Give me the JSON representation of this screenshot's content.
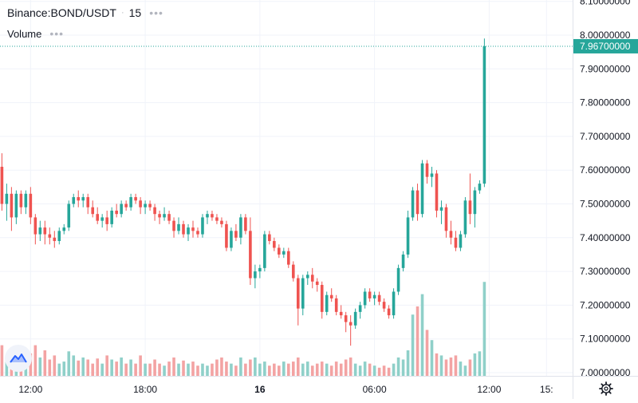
{
  "header": {
    "symbol": "Binance:BOND/USDT",
    "separator": "·",
    "interval": "15",
    "more": "•••"
  },
  "volume_legend": {
    "label": "Volume",
    "more": "•••"
  },
  "last_price_label": "7.96700000",
  "colors": {
    "up": "#26a69a",
    "down": "#ef5350",
    "up_volume": "#8fd0c9",
    "down_volume": "#f3a3a3",
    "grid": "#f0f3fa",
    "price_line": "#26a69a"
  },
  "icons": {
    "logo": "tradingview-logo-icon",
    "settings": "gear-icon"
  },
  "chart_data": {
    "type": "candlestick",
    "symbol": "BOND/USDT",
    "interval_minutes": 15,
    "y_axis": {
      "ticks": [
        7.0,
        7.1,
        7.2,
        7.3,
        7.4,
        7.5,
        7.6,
        7.7,
        7.8,
        7.9,
        8.0,
        8.1
      ],
      "tick_labels": [
        "7.00000000",
        "7.10000000",
        "7.20000000",
        "7.30000000",
        "7.40000000",
        "7.50000000",
        "7.60000000",
        "7.70000000",
        "7.80000000",
        "7.90000000",
        "8.00000000",
        "8.10000000"
      ],
      "range": [
        6.985,
        8.12
      ]
    },
    "x_axis": {
      "tick_labels": [
        {
          "label": "12:00",
          "bar": 6,
          "bold": false
        },
        {
          "label": "18:00",
          "bar": 30,
          "bold": false
        },
        {
          "label": "16",
          "bar": 54,
          "bold": true
        },
        {
          "label": "06:00",
          "bar": 78,
          "bold": false
        },
        {
          "label": "12:00",
          "bar": 102,
          "bold": false
        },
        {
          "label": "15:",
          "bar": 114,
          "bold": false
        }
      ]
    },
    "last_price": 7.967,
    "grid": true,
    "candles": [
      [
        7.61,
        7.65,
        7.48,
        7.5,
        30
      ],
      [
        7.5,
        7.56,
        7.45,
        7.53,
        18
      ],
      [
        7.53,
        7.55,
        7.42,
        7.46,
        15
      ],
      [
        7.46,
        7.54,
        7.44,
        7.53,
        26
      ],
      [
        7.53,
        7.54,
        7.47,
        7.49,
        14
      ],
      [
        7.49,
        7.54,
        7.47,
        7.53,
        20
      ],
      [
        7.53,
        7.55,
        7.44,
        7.46,
        22
      ],
      [
        7.46,
        7.47,
        7.38,
        7.41,
        30
      ],
      [
        7.41,
        7.45,
        7.39,
        7.43,
        18
      ],
      [
        7.43,
        7.45,
        7.38,
        7.41,
        25
      ],
      [
        7.41,
        7.43,
        7.38,
        7.4,
        16
      ],
      [
        7.4,
        7.42,
        7.37,
        7.39,
        20
      ],
      [
        7.39,
        7.43,
        7.38,
        7.42,
        12
      ],
      [
        7.42,
        7.44,
        7.41,
        7.43,
        14
      ],
      [
        7.43,
        7.51,
        7.42,
        7.5,
        24
      ],
      [
        7.5,
        7.53,
        7.49,
        7.52,
        20
      ],
      [
        7.52,
        7.54,
        7.49,
        7.51,
        15
      ],
      [
        7.51,
        7.53,
        7.49,
        7.52,
        18
      ],
      [
        7.52,
        7.53,
        7.47,
        7.49,
        16
      ],
      [
        7.49,
        7.51,
        7.46,
        7.47,
        12
      ],
      [
        7.47,
        7.49,
        7.44,
        7.45,
        17
      ],
      [
        7.45,
        7.47,
        7.43,
        7.46,
        12
      ],
      [
        7.46,
        7.48,
        7.42,
        7.44,
        20
      ],
      [
        7.44,
        7.49,
        7.43,
        7.48,
        16
      ],
      [
        7.48,
        7.5,
        7.46,
        7.47,
        14
      ],
      [
        7.47,
        7.51,
        7.46,
        7.5,
        18
      ],
      [
        7.5,
        7.51,
        7.48,
        7.49,
        12
      ],
      [
        7.49,
        7.53,
        7.48,
        7.52,
        16
      ],
      [
        7.52,
        7.53,
        7.5,
        7.51,
        12
      ],
      [
        7.51,
        7.52,
        7.47,
        7.49,
        20
      ],
      [
        7.49,
        7.51,
        7.47,
        7.5,
        12
      ],
      [
        7.5,
        7.51,
        7.48,
        7.49,
        12
      ],
      [
        7.49,
        7.5,
        7.45,
        7.47,
        16
      ],
      [
        7.47,
        7.48,
        7.44,
        7.46,
        12
      ],
      [
        7.46,
        7.49,
        7.45,
        7.47,
        10
      ],
      [
        7.47,
        7.48,
        7.44,
        7.45,
        14
      ],
      [
        7.45,
        7.46,
        7.4,
        7.42,
        18
      ],
      [
        7.42,
        7.46,
        7.41,
        7.44,
        12
      ],
      [
        7.44,
        7.45,
        7.4,
        7.41,
        15
      ],
      [
        7.41,
        7.44,
        7.39,
        7.43,
        12
      ],
      [
        7.43,
        7.45,
        7.4,
        7.42,
        14
      ],
      [
        7.42,
        7.43,
        7.4,
        7.41,
        10
      ],
      [
        7.41,
        7.47,
        7.4,
        7.46,
        12
      ],
      [
        7.46,
        7.48,
        7.44,
        7.47,
        10
      ],
      [
        7.47,
        7.48,
        7.45,
        7.46,
        12
      ],
      [
        7.46,
        7.47,
        7.44,
        7.45,
        16
      ],
      [
        7.45,
        7.46,
        7.43,
        7.44,
        18
      ],
      [
        7.44,
        7.45,
        7.36,
        7.37,
        14
      ],
      [
        7.37,
        7.43,
        7.36,
        7.42,
        12
      ],
      [
        7.42,
        7.44,
        7.39,
        7.4,
        10
      ],
      [
        7.4,
        7.47,
        7.38,
        7.46,
        18
      ],
      [
        7.46,
        7.47,
        7.41,
        7.42,
        12
      ],
      [
        7.42,
        7.46,
        7.26,
        7.28,
        16
      ],
      [
        7.28,
        7.32,
        7.25,
        7.3,
        18
      ],
      [
        7.3,
        7.32,
        7.28,
        7.31,
        12
      ],
      [
        7.31,
        7.42,
        7.3,
        7.41,
        14
      ],
      [
        7.41,
        7.42,
        7.38,
        7.39,
        10
      ],
      [
        7.39,
        7.4,
        7.36,
        7.37,
        12
      ],
      [
        7.37,
        7.38,
        7.34,
        7.35,
        10
      ],
      [
        7.35,
        7.37,
        7.34,
        7.36,
        14
      ],
      [
        7.36,
        7.37,
        7.31,
        7.32,
        12
      ],
      [
        7.32,
        7.33,
        7.27,
        7.28,
        14
      ],
      [
        7.28,
        7.29,
        7.14,
        7.19,
        18
      ],
      [
        7.19,
        7.29,
        7.17,
        7.28,
        12
      ],
      [
        7.28,
        7.3,
        7.26,
        7.29,
        14
      ],
      [
        7.29,
        7.31,
        7.25,
        7.27,
        10
      ],
      [
        7.27,
        7.28,
        7.24,
        7.26,
        12
      ],
      [
        7.26,
        7.27,
        7.16,
        7.18,
        14
      ],
      [
        7.18,
        7.24,
        7.17,
        7.23,
        12
      ],
      [
        7.23,
        7.25,
        7.21,
        7.22,
        10
      ],
      [
        7.22,
        7.23,
        7.17,
        7.18,
        14
      ],
      [
        7.18,
        7.2,
        7.16,
        7.17,
        12
      ],
      [
        7.17,
        7.18,
        7.12,
        7.15,
        16
      ],
      [
        7.15,
        7.17,
        7.08,
        7.14,
        18
      ],
      [
        7.14,
        7.19,
        7.13,
        7.18,
        12
      ],
      [
        7.18,
        7.21,
        7.16,
        7.2,
        10
      ],
      [
        7.2,
        7.25,
        7.19,
        7.24,
        14
      ],
      [
        7.24,
        7.25,
        7.21,
        7.22,
        12
      ],
      [
        7.22,
        7.24,
        7.2,
        7.23,
        10
      ],
      [
        7.23,
        7.24,
        7.2,
        7.21,
        8
      ],
      [
        7.21,
        7.22,
        7.18,
        7.19,
        10
      ],
      [
        7.19,
        7.2,
        7.16,
        7.17,
        8
      ],
      [
        7.17,
        7.25,
        7.16,
        7.24,
        12
      ],
      [
        7.24,
        7.32,
        7.23,
        7.31,
        18
      ],
      [
        7.31,
        7.36,
        7.3,
        7.35,
        16
      ],
      [
        7.35,
        7.48,
        7.34,
        7.46,
        25
      ],
      [
        7.46,
        7.55,
        7.45,
        7.54,
        60
      ],
      [
        7.54,
        7.56,
        7.45,
        7.47,
        68
      ],
      [
        7.47,
        7.63,
        7.46,
        7.62,
        80
      ],
      [
        7.62,
        7.63,
        7.56,
        7.58,
        45
      ],
      [
        7.58,
        7.61,
        7.55,
        7.59,
        35
      ],
      [
        7.59,
        7.6,
        7.46,
        7.48,
        22
      ],
      [
        7.48,
        7.51,
        7.44,
        7.49,
        20
      ],
      [
        7.49,
        7.5,
        7.4,
        7.42,
        16
      ],
      [
        7.42,
        7.45,
        7.38,
        7.4,
        18
      ],
      [
        7.4,
        7.42,
        7.36,
        7.37,
        20
      ],
      [
        7.37,
        7.42,
        7.36,
        7.41,
        14
      ],
      [
        7.41,
        7.52,
        7.4,
        7.51,
        10
      ],
      [
        7.51,
        7.59,
        7.44,
        7.47,
        16
      ],
      [
        7.47,
        7.55,
        7.43,
        7.54,
        22
      ],
      [
        7.54,
        7.57,
        7.53,
        7.56,
        24
      ],
      [
        7.56,
        7.99,
        7.55,
        7.967,
        92
      ]
    ]
  }
}
